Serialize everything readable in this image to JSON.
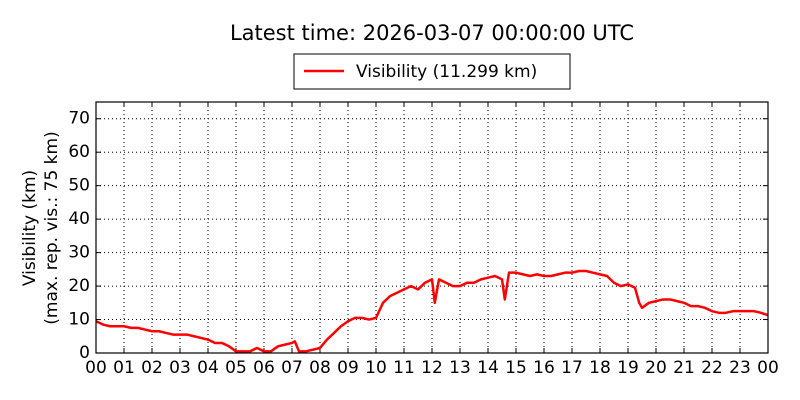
{
  "chart_data": {
    "type": "line",
    "title": "Latest time: 2026-03-07 00:00:00 UTC",
    "ylabel": [
      "Visibility (km)",
      "(max. rep. vis.: 75 km)"
    ],
    "xlim": [
      0,
      24
    ],
    "ylim": [
      0,
      75
    ],
    "xticks": [
      {
        "value": 0,
        "label": "00"
      },
      {
        "value": 1,
        "label": "01"
      },
      {
        "value": 2,
        "label": "02"
      },
      {
        "value": 3,
        "label": "03"
      },
      {
        "value": 4,
        "label": "04"
      },
      {
        "value": 5,
        "label": "05"
      },
      {
        "value": 6,
        "label": "06"
      },
      {
        "value": 7,
        "label": "07"
      },
      {
        "value": 8,
        "label": "08"
      },
      {
        "value": 9,
        "label": "09"
      },
      {
        "value": 10,
        "label": "10"
      },
      {
        "value": 11,
        "label": "11"
      },
      {
        "value": 12,
        "label": "12"
      },
      {
        "value": 13,
        "label": "13"
      },
      {
        "value": 14,
        "label": "14"
      },
      {
        "value": 15,
        "label": "15"
      },
      {
        "value": 16,
        "label": "16"
      },
      {
        "value": 17,
        "label": "17"
      },
      {
        "value": 18,
        "label": "18"
      },
      {
        "value": 19,
        "label": "19"
      },
      {
        "value": 20,
        "label": "20"
      },
      {
        "value": 21,
        "label": "21"
      },
      {
        "value": 22,
        "label": "22"
      },
      {
        "value": 23,
        "label": "23"
      },
      {
        "value": 24,
        "label": "00"
      }
    ],
    "yticks": [
      0,
      10,
      20,
      30,
      40,
      50,
      60,
      70
    ],
    "grid": true,
    "legend": "top",
    "x": [
      0,
      0.25,
      0.5,
      0.75,
      1,
      1.25,
      1.5,
      1.75,
      2,
      2.25,
      2.5,
      2.75,
      3,
      3.25,
      3.5,
      3.75,
      4,
      4.25,
      4.5,
      4.75,
      5,
      5.25,
      5.5,
      5.75,
      6,
      6.25,
      6.5,
      6.75,
      7,
      7.1,
      7.25,
      7.5,
      7.75,
      8,
      8.25,
      8.5,
      8.75,
      9,
      9.25,
      9.5,
      9.75,
      10,
      10.25,
      10.5,
      10.75,
      11,
      11.25,
      11.5,
      11.75,
      12,
      12.1,
      12.25,
      12.5,
      12.75,
      13,
      13.25,
      13.5,
      13.75,
      14,
      14.25,
      14.5,
      14.6,
      14.75,
      15,
      15.25,
      15.5,
      15.75,
      16,
      16.25,
      16.5,
      16.75,
      17,
      17.25,
      17.5,
      17.75,
      18,
      18.25,
      18.5,
      18.75,
      19,
      19.25,
      19.4,
      19.5,
      19.75,
      20,
      20.25,
      20.5,
      20.75,
      21,
      21.25,
      21.5,
      21.75,
      22,
      22.25,
      22.5,
      22.75,
      23,
      23.25,
      23.5,
      23.75,
      24
    ],
    "series": [
      {
        "name": "Visibility (11.299 km)",
        "color": "#ff0000",
        "values": [
          9.5,
          8.5,
          8,
          8,
          8,
          7.5,
          7.5,
          7,
          6.5,
          6.5,
          6,
          5.5,
          5.5,
          5.5,
          5,
          4.5,
          4,
          3,
          3,
          2,
          0.5,
          0.5,
          0.5,
          1.5,
          0.5,
          0.5,
          2,
          2.5,
          3,
          3.5,
          0.5,
          0.5,
          1,
          1.5,
          4,
          6,
          8,
          9.5,
          10.5,
          10.5,
          10,
          10.5,
          15,
          17,
          18,
          19,
          20,
          19,
          21,
          22,
          15,
          22,
          21,
          20,
          20,
          21,
          21,
          22,
          22.5,
          23,
          22,
          16,
          24,
          24,
          23.5,
          23,
          23.5,
          23,
          23,
          23.5,
          24,
          24,
          24.5,
          24.5,
          24,
          23.5,
          23,
          21,
          20,
          20.5,
          19.5,
          15,
          13.5,
          15,
          15.5,
          16,
          16,
          15.5,
          15,
          14,
          14,
          13.5,
          12.5,
          12,
          12,
          12.5,
          12.5,
          12.5,
          12.5,
          12,
          11.3
        ]
      }
    ]
  }
}
